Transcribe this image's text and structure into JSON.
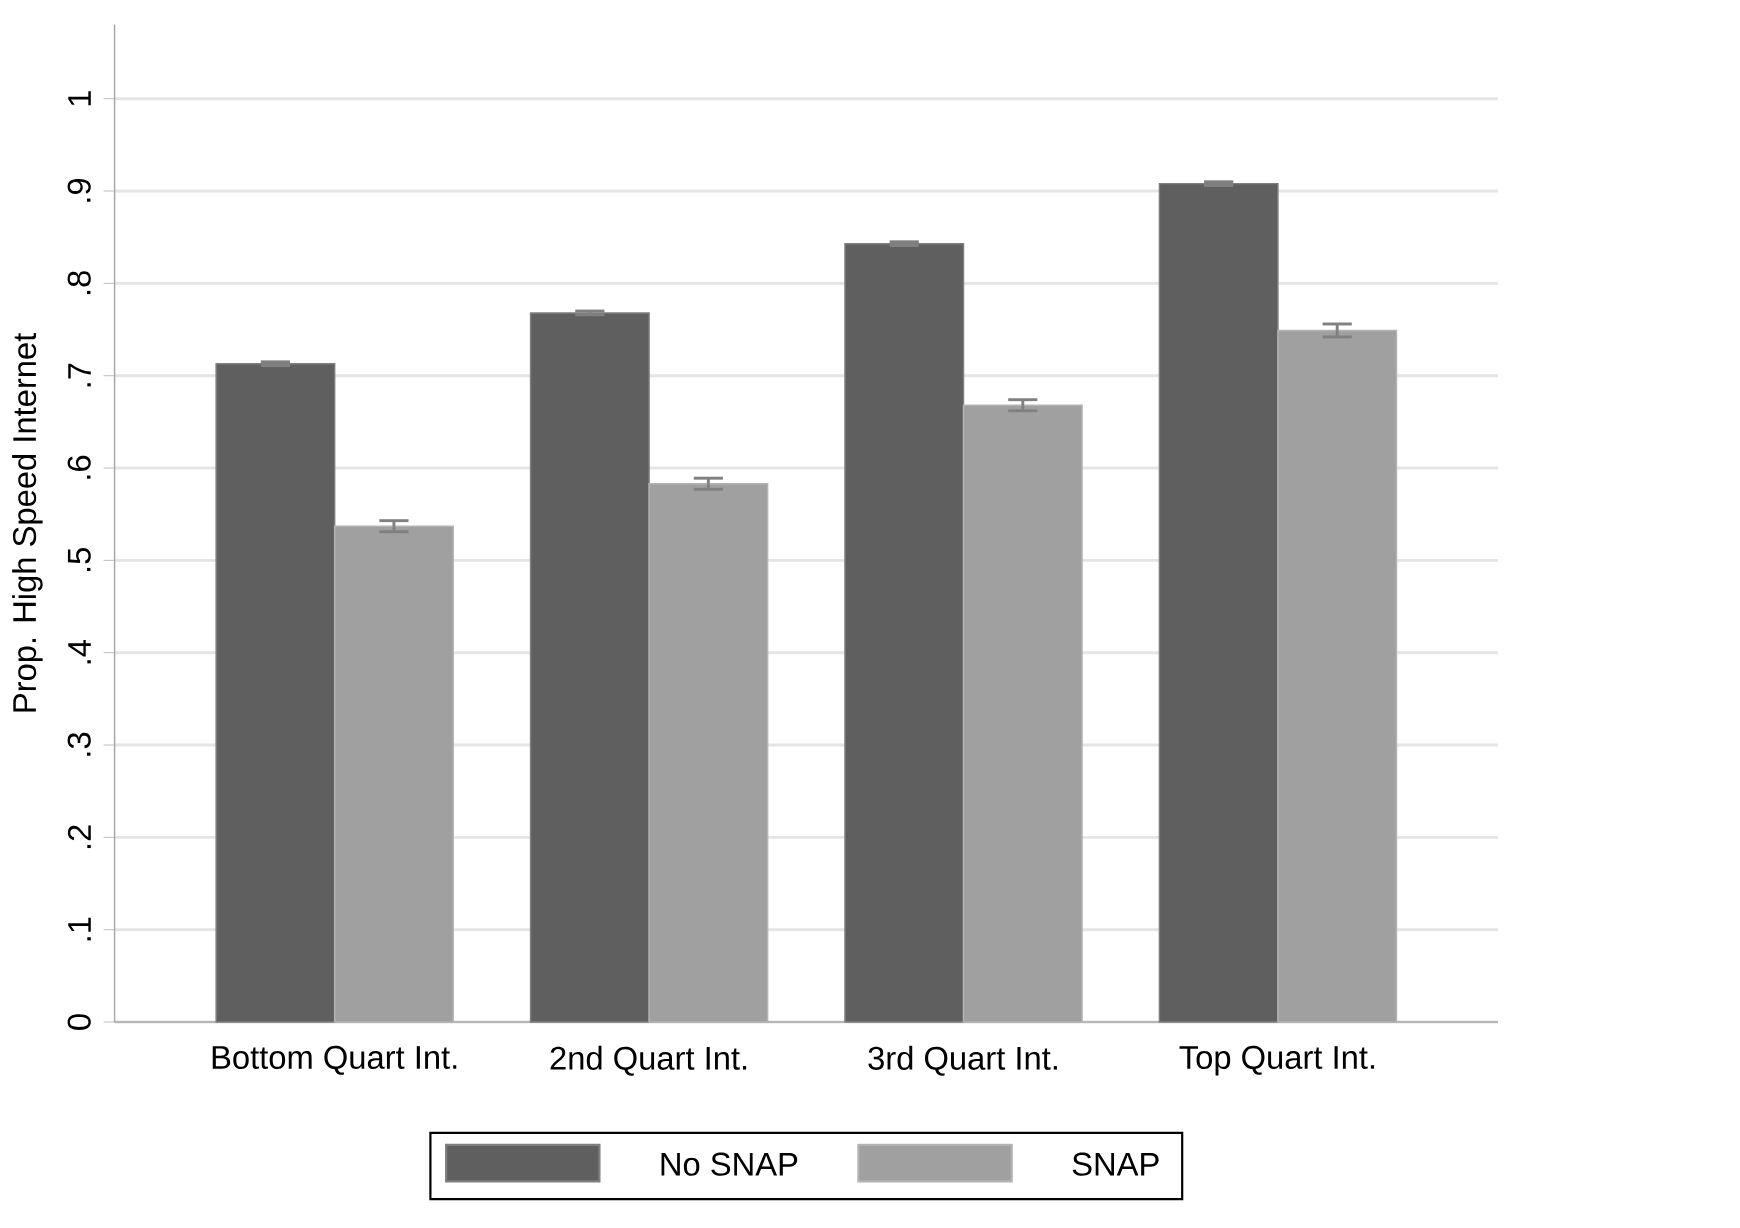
{
  "chart_data": {
    "type": "bar",
    "ylabel": "Prop. High Speed Internet",
    "categories": [
      "Bottom Quart Int.",
      "2nd Quart Int.",
      "3rd Quart Int.",
      "Top Quart Int."
    ],
    "series": [
      {
        "name": "No SNAP",
        "color": "#5f5f5f",
        "values": [
          0.713,
          0.768,
          0.843,
          0.908
        ],
        "errors": [
          0.002,
          0.002,
          0.002,
          0.002
        ]
      },
      {
        "name": "SNAP",
        "color": "#a0a0a0",
        "values": [
          0.537,
          0.583,
          0.668,
          0.749
        ],
        "errors": [
          0.006,
          0.006,
          0.006,
          0.007
        ]
      }
    ],
    "ylim": [
      0,
      1.08
    ],
    "yticks": [
      {
        "value": 0,
        "label": "0"
      },
      {
        "value": 0.1,
        "label": ".1"
      },
      {
        "value": 0.2,
        "label": ".2"
      },
      {
        "value": 0.3,
        "label": ".3"
      },
      {
        "value": 0.4,
        "label": ".4"
      },
      {
        "value": 0.5,
        "label": ".5"
      },
      {
        "value": 0.6,
        "label": ".6"
      },
      {
        "value": 0.7,
        "label": ".7"
      },
      {
        "value": 0.8,
        "label": ".8"
      },
      {
        "value": 0.9,
        "label": ".9"
      },
      {
        "value": 1,
        "label": "1"
      }
    ],
    "grid": "y",
    "legend": "bottom"
  }
}
